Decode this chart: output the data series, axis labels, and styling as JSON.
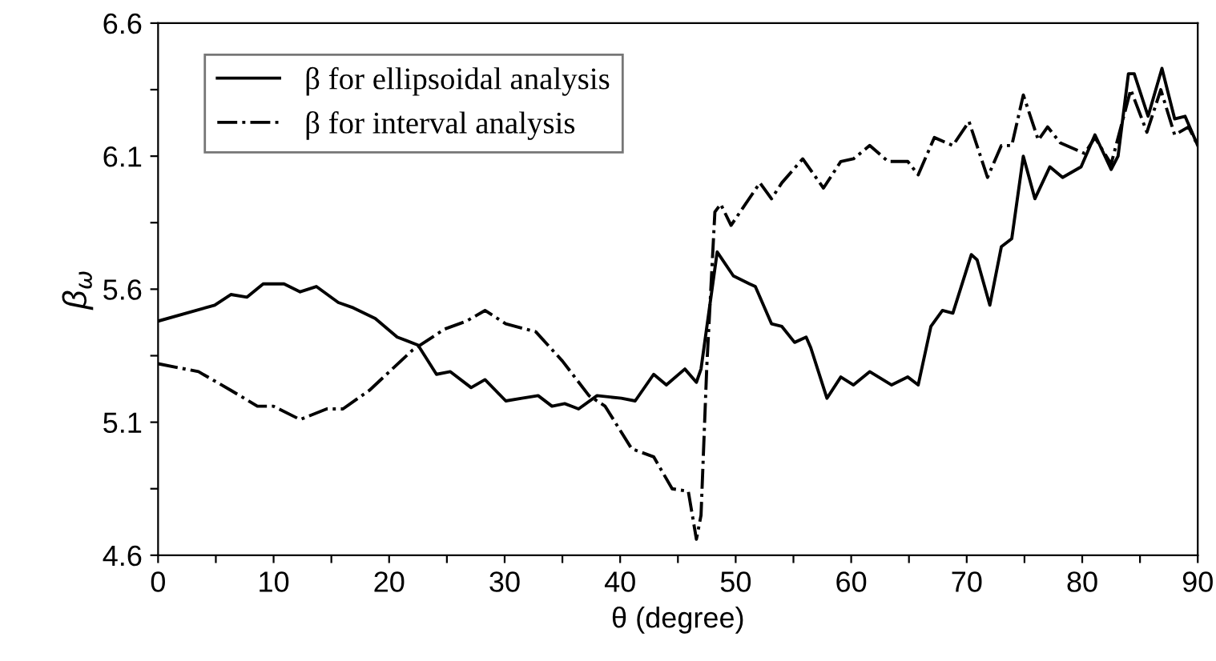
{
  "chart_data": {
    "type": "line",
    "xlabel": "θ (degree)",
    "ylabel": "β$_{ω}$",
    "xlim": [
      0,
      90
    ],
    "ylim": [
      4.6,
      6.6
    ],
    "xticks": [
      0,
      {
        "value": 5,
        "label": null
      },
      10,
      {
        "value": 15,
        "label": null
      },
      20,
      {
        "value": 25,
        "label": null
      },
      30,
      {
        "value": 35,
        "label": null
      },
      40,
      {
        "value": 45,
        "label": null
      },
      50,
      {
        "value": 55,
        "label": null
      },
      60,
      {
        "value": 65,
        "label": null
      },
      70,
      {
        "value": 75,
        "label": null
      },
      80,
      {
        "value": 85,
        "label": null
      },
      90
    ],
    "yticks": [
      4.6,
      {
        "value": 4.85,
        "label": null
      },
      5.1,
      {
        "value": 5.35,
        "label": null
      },
      5.6,
      {
        "value": 5.85,
        "label": null
      },
      6.1,
      {
        "value": 6.35,
        "label": null
      },
      6.6
    ],
    "legend": "top left",
    "grid": false,
    "series": [
      {
        "name": "β for ellipsoidal analysis",
        "color": "#000000",
        "line_style": "solid",
        "x": [
          0,
          4.9,
          6.3,
          7.7,
          9.1,
          10.9,
          12.3,
          13.7,
          15.6,
          16.9,
          18.8,
          20.7,
          22.5,
          24.1,
          25.3,
          27.1,
          28.3,
          30.1,
          31.5,
          32.9,
          34.1,
          35.2,
          36.4,
          38,
          40.1,
          41.3,
          42.9,
          44,
          45.6,
          46.6,
          47,
          48.4,
          49.8,
          51.2,
          51.7,
          53.1,
          54,
          55.1,
          56.1,
          56.5,
          57.9,
          59.1,
          60.2,
          61.6,
          63.5,
          64.9,
          65.8,
          66.9,
          67.9,
          68.8,
          70.4,
          70.9,
          72,
          73,
          73.9,
          74.9,
          75.9,
          77.2,
          78.3,
          79.9,
          81.1,
          82.5,
          83.1,
          84,
          84.5,
          85.7,
          86.9,
          88,
          88.9,
          90
        ],
        "values": [
          5.48,
          5.54,
          5.58,
          5.57,
          5.62,
          5.62,
          5.59,
          5.61,
          5.55,
          5.53,
          5.49,
          5.42,
          5.39,
          5.28,
          5.29,
          5.23,
          5.26,
          5.18,
          5.19,
          5.2,
          5.16,
          5.17,
          5.15,
          5.2,
          5.19,
          5.18,
          5.28,
          5.24,
          5.3,
          5.25,
          5.3,
          5.74,
          5.65,
          5.62,
          5.61,
          5.47,
          5.46,
          5.4,
          5.42,
          5.38,
          5.19,
          5.27,
          5.24,
          5.29,
          5.24,
          5.27,
          5.24,
          5.46,
          5.52,
          5.51,
          5.73,
          5.71,
          5.54,
          5.76,
          5.79,
          6.1,
          5.94,
          6.06,
          6.02,
          6.06,
          6.18,
          6.05,
          6.1,
          6.41,
          6.41,
          6.25,
          6.43,
          6.24,
          6.25,
          6.14
        ]
      },
      {
        "name": "β for interval analysis",
        "color": "#000000",
        "line_style": "dashdot",
        "x": [
          0,
          3.5,
          6.3,
          8.6,
          10,
          12.3,
          14.6,
          16,
          18.3,
          22,
          24.8,
          26.7,
          28.3,
          30.1,
          32.7,
          35,
          37.3,
          38.7,
          41,
          42.9,
          44.5,
          45.9,
          46.6,
          47,
          47.5,
          48.2,
          48.7,
          49.6,
          52.1,
          53.1,
          54,
          55.8,
          57.6,
          59.1,
          60.2,
          61.6,
          63.2,
          64.9,
          65.8,
          67.2,
          68.8,
          70.2,
          71.8,
          73,
          73.9,
          74.9,
          76.2,
          77,
          78.1,
          80.2,
          81.1,
          82.5,
          84.2,
          85.6,
          86.8,
          88,
          89.2,
          90
        ],
        "values": [
          5.32,
          5.29,
          5.22,
          5.16,
          5.16,
          5.11,
          5.15,
          5.15,
          5.22,
          5.37,
          5.45,
          5.48,
          5.52,
          5.47,
          5.44,
          5.33,
          5.2,
          5.16,
          5.0,
          4.97,
          4.85,
          4.84,
          4.66,
          4.75,
          5.31,
          5.89,
          5.92,
          5.84,
          6.0,
          5.94,
          6.0,
          6.09,
          5.98,
          6.08,
          6.09,
          6.14,
          6.08,
          6.08,
          6.03,
          6.17,
          6.14,
          6.23,
          6.02,
          6.14,
          6.14,
          6.33,
          6.16,
          6.21,
          6.15,
          6.11,
          6.17,
          6.07,
          6.35,
          6.19,
          6.35,
          6.18,
          6.21,
          6.14
        ]
      }
    ]
  }
}
